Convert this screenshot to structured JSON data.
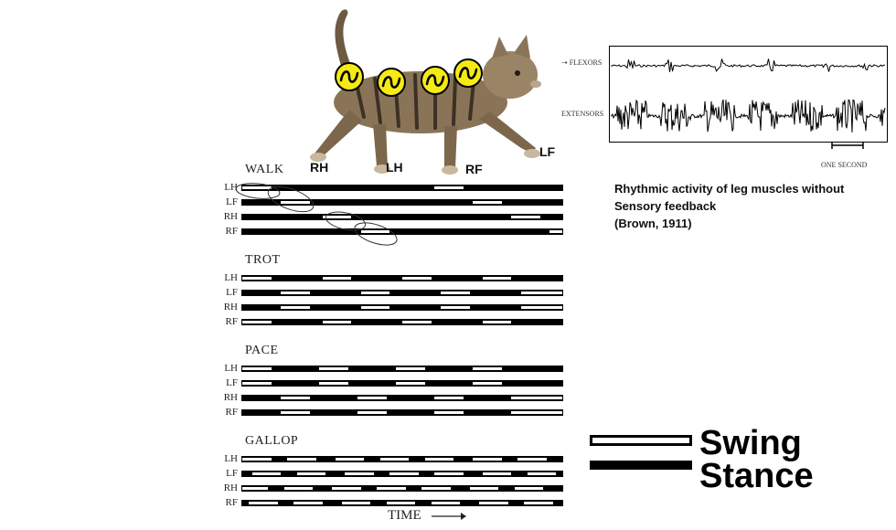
{
  "cat": {
    "leg_labels": {
      "rh": "RH",
      "lh": "LH",
      "rf": "RF",
      "lf": "LF"
    }
  },
  "emg": {
    "flexors_label": "FLEXORS",
    "extensors_label": "EXTENSORS",
    "scale_label": "ONE SECOND"
  },
  "caption": {
    "line1": "Rhythmic activity of leg muscles without",
    "line2": "Sensory feedback",
    "line3": "(Brown, 1911)"
  },
  "legend": {
    "swing": "Swing",
    "stance": "Stance"
  },
  "time_label": "TIME",
  "gaits": [
    {
      "title": "WALK",
      "rows": [
        {
          "leg": "LH",
          "swing": [
            [
              0.0,
              0.09
            ],
            [
              0.6,
              0.69
            ]
          ]
        },
        {
          "leg": "LF",
          "swing": [
            [
              0.12,
              0.21
            ],
            [
              0.72,
              0.81
            ]
          ]
        },
        {
          "leg": "RH",
          "swing": [
            [
              0.25,
              0.34
            ],
            [
              0.84,
              0.93
            ]
          ]
        },
        {
          "leg": "RF",
          "swing": [
            [
              0.37,
              0.46
            ],
            [
              0.96,
              1.0
            ]
          ]
        }
      ]
    },
    {
      "title": "TROT",
      "rows": [
        {
          "leg": "LH",
          "swing": [
            [
              0.0,
              0.09
            ],
            [
              0.25,
              0.34
            ],
            [
              0.5,
              0.59
            ],
            [
              0.75,
              0.84
            ]
          ]
        },
        {
          "leg": "LF",
          "swing": [
            [
              0.12,
              0.21
            ],
            [
              0.37,
              0.46
            ],
            [
              0.62,
              0.71
            ],
            [
              0.87,
              1.0
            ]
          ]
        },
        {
          "leg": "RH",
          "swing": [
            [
              0.12,
              0.21
            ],
            [
              0.37,
              0.46
            ],
            [
              0.62,
              0.71
            ],
            [
              0.87,
              1.0
            ]
          ]
        },
        {
          "leg": "RF",
          "swing": [
            [
              0.0,
              0.09
            ],
            [
              0.25,
              0.34
            ],
            [
              0.5,
              0.59
            ],
            [
              0.75,
              0.84
            ]
          ]
        }
      ]
    },
    {
      "title": "PACE",
      "rows": [
        {
          "leg": "LH",
          "swing": [
            [
              0.0,
              0.09
            ],
            [
              0.24,
              0.33
            ],
            [
              0.48,
              0.57
            ],
            [
              0.72,
              0.81
            ]
          ]
        },
        {
          "leg": "LF",
          "swing": [
            [
              0.0,
              0.09
            ],
            [
              0.24,
              0.33
            ],
            [
              0.48,
              0.57
            ],
            [
              0.72,
              0.81
            ]
          ]
        },
        {
          "leg": "RH",
          "swing": [
            [
              0.12,
              0.21
            ],
            [
              0.36,
              0.45
            ],
            [
              0.6,
              0.69
            ],
            [
              0.84,
              1.0
            ]
          ]
        },
        {
          "leg": "RF",
          "swing": [
            [
              0.12,
              0.21
            ],
            [
              0.36,
              0.45
            ],
            [
              0.6,
              0.69
            ],
            [
              0.84,
              1.0
            ]
          ]
        }
      ]
    },
    {
      "title": "GALLOP",
      "rows": [
        {
          "leg": "LH",
          "swing": [
            [
              0.0,
              0.09
            ],
            [
              0.14,
              0.23
            ],
            [
              0.29,
              0.38
            ],
            [
              0.43,
              0.52
            ],
            [
              0.57,
              0.66
            ],
            [
              0.72,
              0.81
            ],
            [
              0.86,
              0.95
            ]
          ]
        },
        {
          "leg": "LF",
          "swing": [
            [
              0.03,
              0.12
            ],
            [
              0.17,
              0.26
            ],
            [
              0.32,
              0.41
            ],
            [
              0.46,
              0.55
            ],
            [
              0.6,
              0.69
            ],
            [
              0.75,
              0.84
            ],
            [
              0.89,
              0.98
            ]
          ]
        },
        {
          "leg": "RH",
          "swing": [
            [
              0.0,
              0.08
            ],
            [
              0.13,
              0.22
            ],
            [
              0.28,
              0.37
            ],
            [
              0.42,
              0.51
            ],
            [
              0.56,
              0.65
            ],
            [
              0.71,
              0.8
            ],
            [
              0.85,
              0.94
            ]
          ]
        },
        {
          "leg": "RF",
          "swing": [
            [
              0.02,
              0.11
            ],
            [
              0.16,
              0.25
            ],
            [
              0.31,
              0.4
            ],
            [
              0.45,
              0.54
            ],
            [
              0.59,
              0.68
            ],
            [
              0.74,
              0.83
            ],
            [
              0.88,
              0.97
            ]
          ]
        }
      ]
    }
  ]
}
